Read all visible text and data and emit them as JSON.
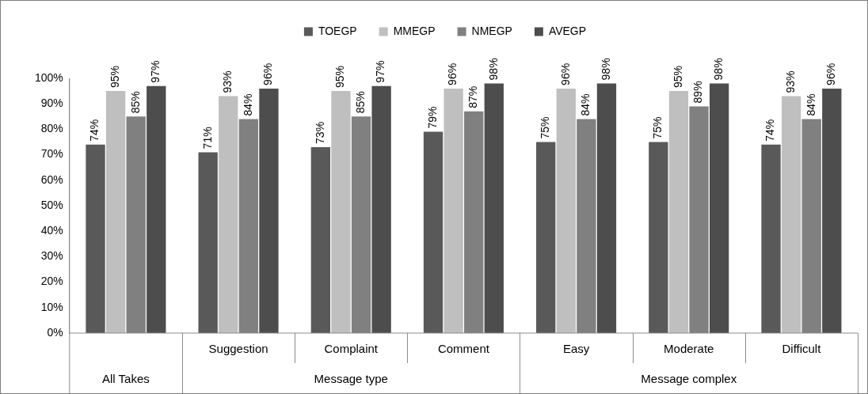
{
  "chart_data": {
    "type": "bar",
    "categories": [
      null,
      "Suggestion",
      "Complaint",
      "Comment",
      "Easy",
      "Moderate",
      "Difficult"
    ],
    "series": [
      {
        "name": "TOEGP",
        "color": "#595959",
        "values": [
          74,
          71,
          73,
          79,
          75,
          75,
          74
        ],
        "value_labels": [
          "74%",
          "71%",
          "73%",
          "79%",
          "75%",
          "75%",
          "74%"
        ]
      },
      {
        "name": "MMEGP",
        "color": "#bfbfbf",
        "values": [
          95,
          93,
          95,
          96,
          96,
          95,
          93
        ],
        "value_labels": [
          "95%",
          "93%",
          "95%",
          "96%",
          "96%",
          "95%",
          "93%"
        ]
      },
      {
        "name": "NMEGP",
        "color": "#808080",
        "values": [
          85,
          84,
          85,
          87,
          84,
          89,
          84
        ],
        "value_labels": [
          "85%",
          "84%",
          "85%",
          "87%",
          "84%",
          "89%",
          "84%"
        ]
      },
      {
        "name": "AVEGP",
        "color": "#4d4d4d",
        "values": [
          97,
          96,
          97,
          98,
          98,
          98,
          96
        ],
        "value_labels": [
          "97%",
          "96%",
          "97%",
          "98%",
          "98%",
          "98%",
          "96%"
        ]
      }
    ],
    "ylim": [
      0,
      100
    ],
    "yticks": [
      {
        "value": 0,
        "label": "0%"
      },
      {
        "value": 10,
        "label": "10%"
      },
      {
        "value": 20,
        "label": "20%"
      },
      {
        "value": 30,
        "label": "30%"
      },
      {
        "value": 40,
        "label": "40%"
      },
      {
        "value": 50,
        "label": "50%"
      },
      {
        "value": 60,
        "label": "60%"
      },
      {
        "value": 70,
        "label": "70%"
      },
      {
        "value": 80,
        "label": "80%"
      },
      {
        "value": 90,
        "label": "90%"
      },
      {
        "value": 100,
        "label": "100%"
      }
    ],
    "grid": false,
    "legend": "top",
    "annotations": [
      "All Takes",
      "Message type",
      "Message complex"
    ]
  }
}
